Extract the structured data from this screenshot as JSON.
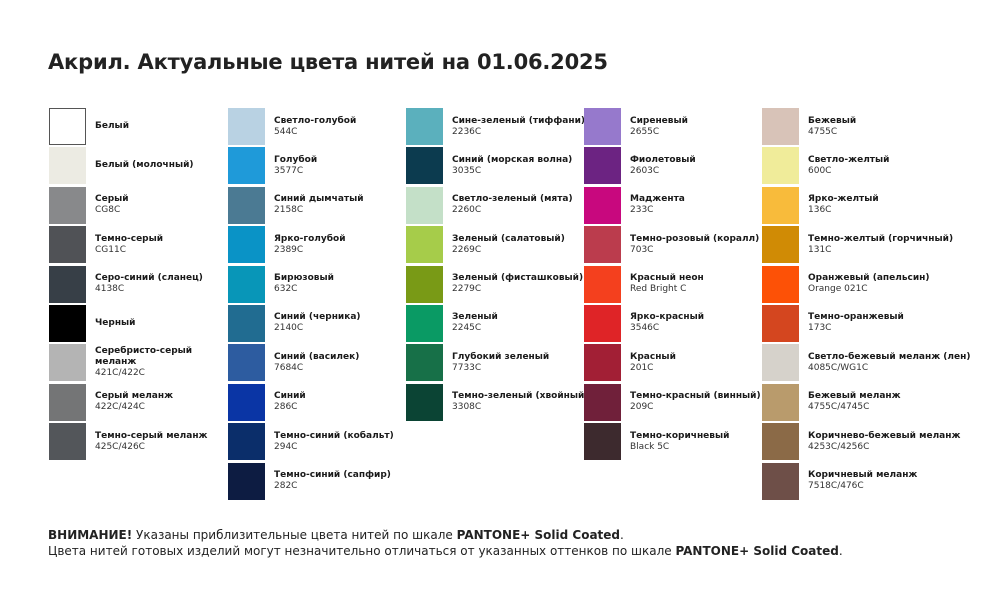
{
  "title": "Акрил. Актуальные цвета нитей на 01.06.2025",
  "columns": [
    [
      {
        "name": "Белый",
        "code": "",
        "color": "#ffffff"
      },
      {
        "name": "Белый (молочный)",
        "code": "",
        "color": "#ecebe3"
      },
      {
        "name": "Серый",
        "code": "CG8C",
        "color": "#88898b"
      },
      {
        "name": "Темно-серый",
        "code": "CG11C",
        "color": "#505256"
      },
      {
        "name": "Серо-синий (сланец)",
        "code": "4138C",
        "color": "#373f47"
      },
      {
        "name": "Черный",
        "code": "",
        "color": "#000000"
      },
      {
        "name": "Серебристо-серый меланж",
        "code": "421C/422C",
        "color": "#b4b4b4"
      },
      {
        "name": "Серый меланж",
        "code": "422C/424C",
        "color": "#747576"
      },
      {
        "name": "Темно-серый меланж",
        "code": "425C/426C",
        "color": "#53565a"
      }
    ],
    [
      {
        "name": "Светло-голубой",
        "code": "544C",
        "color": "#b9d2e3"
      },
      {
        "name": "Голубой",
        "code": "3577C",
        "color": "#1f9ad9"
      },
      {
        "name": "Синий дымчатый",
        "code": "2158C",
        "color": "#4b7a93"
      },
      {
        "name": "Ярко-голубой",
        "code": "2389C",
        "color": "#0a93c6"
      },
      {
        "name": "Бирюзовый",
        "code": "632C",
        "color": "#0896b8"
      },
      {
        "name": "Синий (черника)",
        "code": "2140C",
        "color": "#216c91"
      },
      {
        "name": "Синий (василек)",
        "code": "7684C",
        "color": "#2d5ca0"
      },
      {
        "name": "Синий",
        "code": "286C",
        "color": "#0a35a5"
      },
      {
        "name": "Темно-синий (кобальт)",
        "code": "294C",
        "color": "#0b2e6a"
      },
      {
        "name": "Темно-синий (сапфир)",
        "code": "282C",
        "color": "#0d1c42"
      }
    ],
    [
      {
        "name": "Сине-зеленый (тиффани)",
        "code": "2236C",
        "color": "#5bb0bd"
      },
      {
        "name": "Синий (морская волна)",
        "code": "3035C",
        "color": "#0c3b4f"
      },
      {
        "name": "Светло-зеленый (мята)",
        "code": "2260C",
        "color": "#c4e0c8"
      },
      {
        "name": "Зеленый (салатовый)",
        "code": "2269C",
        "color": "#a6cc4a"
      },
      {
        "name": "Зеленый (фисташковый)",
        "code": "2279C",
        "color": "#799a16"
      },
      {
        "name": "Зеленый",
        "code": "2245C",
        "color": "#0a9a64"
      },
      {
        "name": "Глубокий зеленый",
        "code": "7733C",
        "color": "#177048"
      },
      {
        "name": "Темно-зеленый (хвойный)",
        "code": "3308C",
        "color": "#0b4434"
      }
    ],
    [
      {
        "name": "Сиреневый",
        "code": "2655C",
        "color": "#9679cc"
      },
      {
        "name": "Фиолетовый",
        "code": "2603C",
        "color": "#6c2382"
      },
      {
        "name": "Маджента",
        "code": "233C",
        "color": "#c8087e"
      },
      {
        "name": "Темно-розовый (коралл)",
        "code": "703C",
        "color": "#bb3c4d"
      },
      {
        "name": "Красный неон",
        "code": "Red Bright C",
        "color": "#f4401e"
      },
      {
        "name": "Ярко-красный",
        "code": "3546C",
        "color": "#df2427"
      },
      {
        "name": "Красный",
        "code": "201C",
        "color": "#a21f35"
      },
      {
        "name": "Темно-красный (винный)",
        "code": "209C",
        "color": "#70203a"
      },
      {
        "name": "Темно-коричневый",
        "code": "Black 5C",
        "color": "#3d2a2e"
      }
    ],
    [
      {
        "name": "Бежевый",
        "code": "4755C",
        "color": "#d8c3b8"
      },
      {
        "name": "Светло-желтый",
        "code": "600C",
        "color": "#f0ec9a"
      },
      {
        "name": "Ярко-желтый",
        "code": "136C",
        "color": "#f8bb3b"
      },
      {
        "name": "Темно-желтый (горчичный)",
        "code": "131C",
        "color": "#d08b05"
      },
      {
        "name": "Оранжевый (апельсин)",
        "code": "Orange 021C",
        "color": "#fd5106"
      },
      {
        "name": "Темно-оранжевый",
        "code": "173C",
        "color": "#d4461f"
      },
      {
        "name": "Светло-бежевый меланж (лен)",
        "code": "4085C/WG1C",
        "color": "#d6d2cb"
      },
      {
        "name": "Бежевый меланж",
        "code": "4755C/4745C",
        "color": "#b99b6c"
      },
      {
        "name": "Коричнево-бежевый меланж",
        "code": "4253C/4256C",
        "color": "#8b6a47"
      },
      {
        "name": "Коричневый меланж",
        "code": "7518C/476C",
        "color": "#6e4f48"
      }
    ]
  ],
  "notes": {
    "line1_bold": "ВНИМАНИЕ!",
    "line1": " Указаны приблизительные цвета нитей по шкале ",
    "line1_scale": "PANTONE+ Solid Coated",
    "line1_end": ".",
    "line2": "Цвета нитей готовых изделий могут незначительно отличаться от указанных оттенков по шкале ",
    "line2_scale": "PANTONE+ Solid Coated",
    "line2_end": "."
  }
}
